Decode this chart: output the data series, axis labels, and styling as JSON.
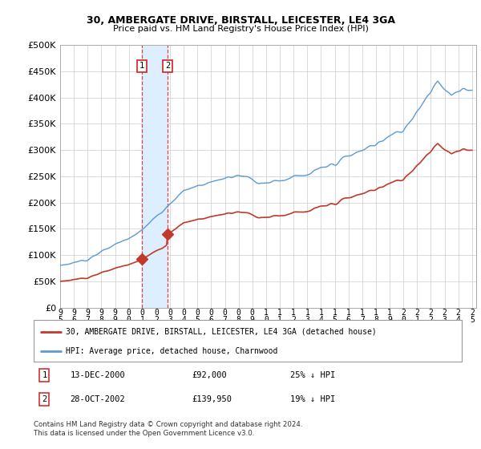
{
  "title1": "30, AMBERGATE DRIVE, BIRSTALL, LEICESTER, LE4 3GA",
  "title2": "Price paid vs. HM Land Registry's House Price Index (HPI)",
  "ylim": [
    0,
    500000
  ],
  "yticks": [
    0,
    50000,
    100000,
    150000,
    200000,
    250000,
    300000,
    350000,
    400000,
    450000,
    500000
  ],
  "ytick_labels": [
    "£0",
    "£50K",
    "£100K",
    "£150K",
    "£200K",
    "£250K",
    "£300K",
    "£350K",
    "£400K",
    "£450K",
    "£500K"
  ],
  "hpi_color": "#5b9bd5",
  "price_color": "#c0392b",
  "sale1_year": 2000.96,
  "sale1_price": 92000,
  "sale2_year": 2002.83,
  "sale2_price": 139950,
  "legend_line1": "30, AMBERGATE DRIVE, BIRSTALL, LEICESTER, LE4 3GA (detached house)",
  "legend_line2": "HPI: Average price, detached house, Charnwood",
  "table_row1": [
    "1",
    "13-DEC-2000",
    "£92,000",
    "25% ↓ HPI"
  ],
  "table_row2": [
    "2",
    "28-OCT-2002",
    "£139,950",
    "19% ↓ HPI"
  ],
  "footnote": "Contains HM Land Registry data © Crown copyright and database right 2024.\nThis data is licensed under the Open Government Licence v3.0.",
  "grid_color": "#cccccc",
  "shade_color": "#ddeeff",
  "xlim_start": 1995,
  "xlim_end": 2025.3
}
